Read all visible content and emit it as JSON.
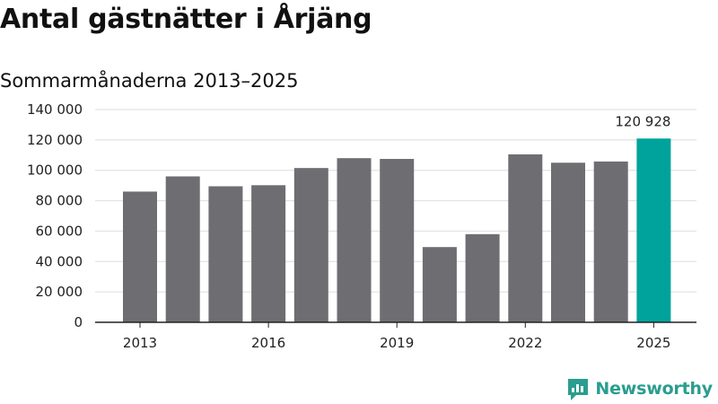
{
  "chart_data": {
    "type": "bar",
    "title": "Antal gästnätter i Årjäng",
    "subtitle": "Sommarmånaderna 2013–2025",
    "categories": [
      "2013",
      "2014",
      "2015",
      "2016",
      "2017",
      "2018",
      "2019",
      "2020",
      "2021",
      "2022",
      "2023",
      "2024",
      "2025"
    ],
    "values": [
      86000,
      96000,
      89500,
      90200,
      101500,
      108000,
      107500,
      49500,
      58000,
      110500,
      105000,
      105800,
      120928
    ],
    "x_tick_labels": [
      "2013",
      "2016",
      "2019",
      "2022",
      "2025"
    ],
    "y_ticks": [
      0,
      20000,
      40000,
      60000,
      80000,
      100000,
      120000,
      140000
    ],
    "y_tick_labels": [
      "0",
      "20 000",
      "40 000",
      "60 000",
      "80 000",
      "100 000",
      "120 000",
      "140 000"
    ],
    "ylim": [
      0,
      140000
    ],
    "grid": true,
    "bar_color": "#6e6d72",
    "highlight_color": "#00a39b",
    "highlight_category": "2025",
    "data_labels": [
      {
        "category": "2025",
        "text": "120 928"
      }
    ]
  },
  "brand": {
    "name": "Newsworthy",
    "logo_icon": "newsworthy-logo-icon",
    "color": "#2a9d8f"
  }
}
